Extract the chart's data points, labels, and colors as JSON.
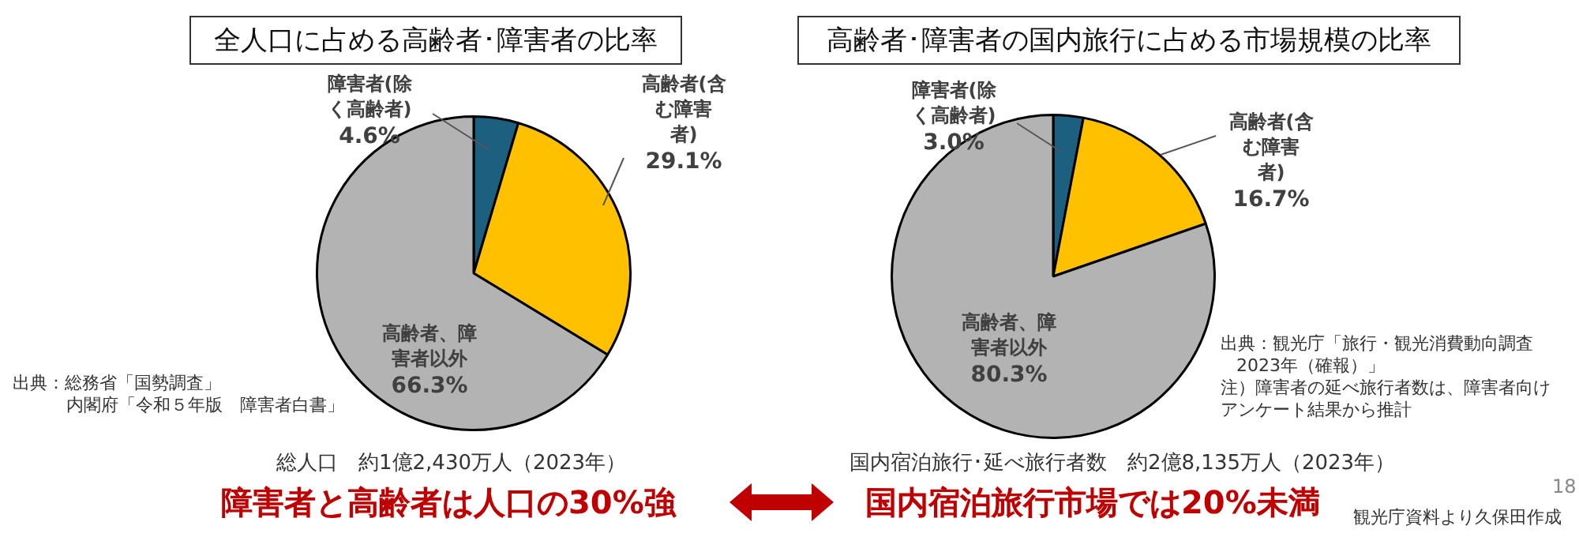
{
  "chart_data": [
    {
      "type": "pie",
      "title": "全人口に占める高齢者･障害者の比率",
      "categories": [
        "障害者(除く高齢者)",
        "高齢者(含む障害者)",
        "高齢者、障害者以外"
      ],
      "values": [
        4.6,
        29.1,
        66.3
      ],
      "colors": [
        "#1d5f7e",
        "#ffc000",
        "#b3b3b3"
      ],
      "value_labels": [
        "4.6%",
        "29.1%",
        "66.3%"
      ],
      "annotations": [
        "出典：総務省「国勢調査」",
        "内閣府「令和５年版　障害者白書」",
        "総人口　約1億2,430万人（2023年）",
        "障害者と高齢者は人口の30%強"
      ]
    },
    {
      "type": "pie",
      "title": "高齢者･障害者の国内旅行に占める市場規模の比率",
      "categories": [
        "障害者(除く高齢者)",
        "高齢者(含む障害者)",
        "高齢者、障害者以外"
      ],
      "values": [
        3.0,
        16.7,
        80.3
      ],
      "colors": [
        "#1d5f7e",
        "#ffc000",
        "#b3b3b3"
      ],
      "value_labels": [
        "3.0%",
        "16.7%",
        "80.3%"
      ],
      "annotations": [
        "出典：観光庁「旅行・観光消費動向調査",
        "2023年（確報）」",
        "注）障害者の延べ旅行者数は、障害者向けアンケート結果から推計",
        "国内宿泊旅行･延べ旅行者数　約2億8,135万人（2023年）",
        "国内宿泊旅行市場では20%未満",
        "18",
        "観光庁資料より久保田作成"
      ]
    }
  ]
}
